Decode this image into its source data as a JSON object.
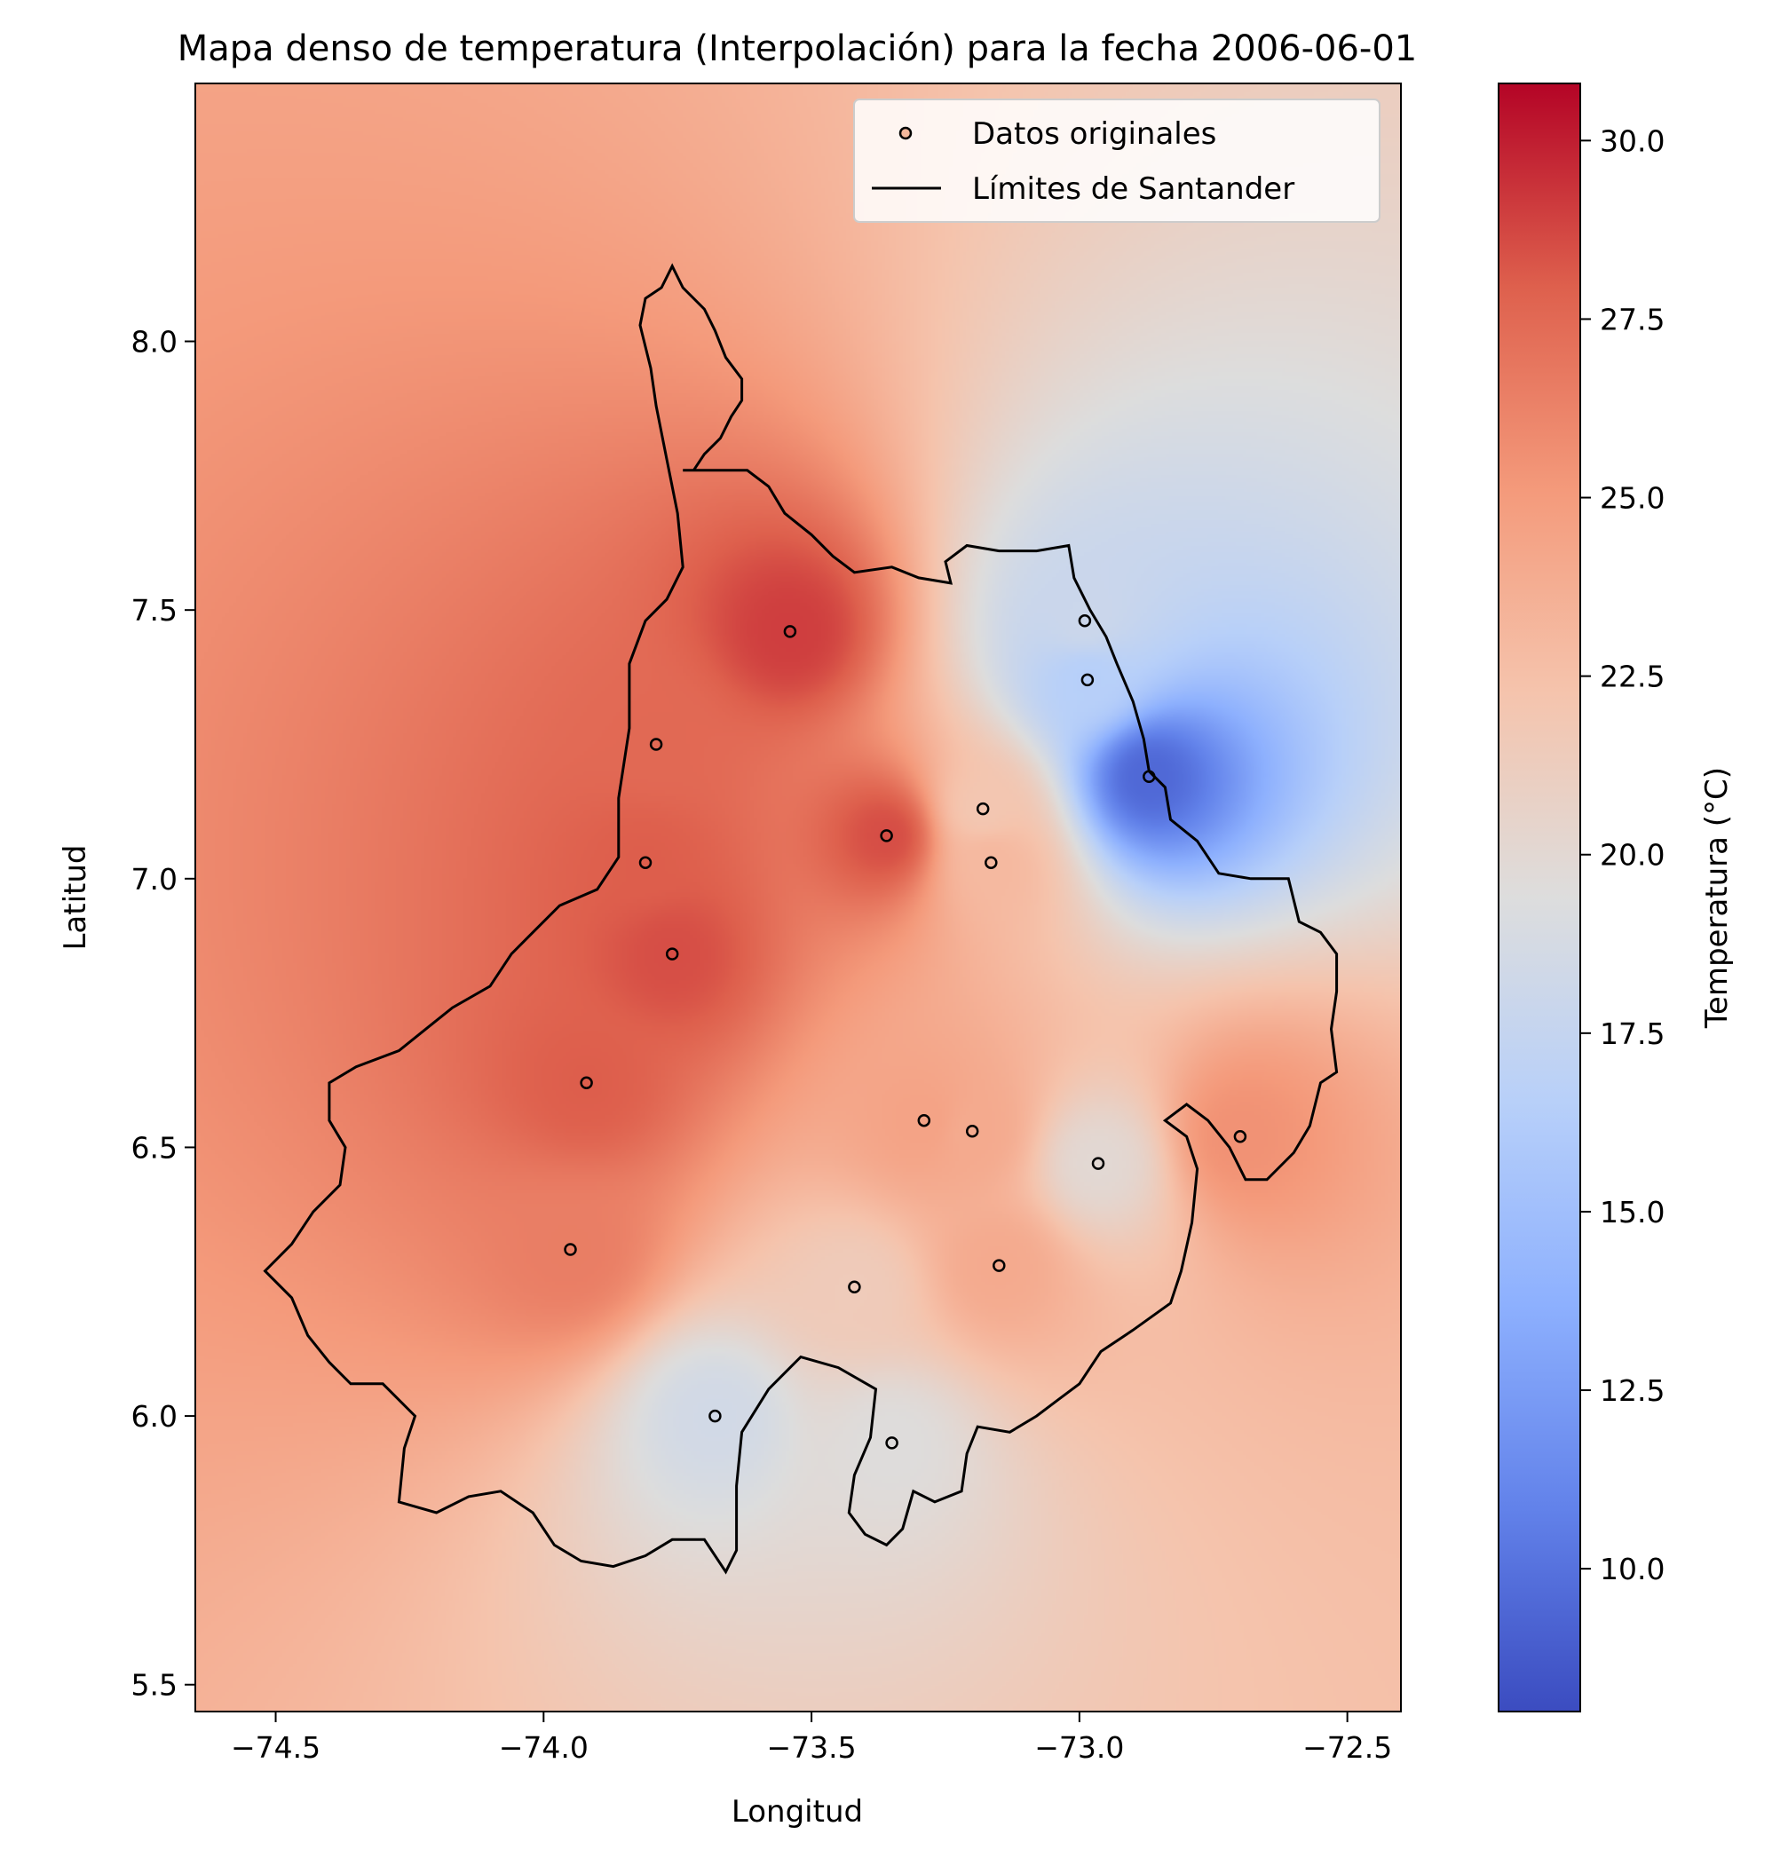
{
  "chart_data": {
    "type": "heatmap",
    "title": "Mapa denso de temperatura (Interpolación) para la fecha 2006-06-01",
    "xlabel": "Longitud",
    "ylabel": "Latitud",
    "xlim": [
      -74.65,
      -72.4
    ],
    "ylim": [
      5.45,
      8.48
    ],
    "x_ticks": [
      -74.5,
      -74.0,
      -73.5,
      -73.0,
      -72.5
    ],
    "x_tick_labels": [
      "−74.5",
      "−74.0",
      "−73.5",
      "−73.0",
      "−72.5"
    ],
    "y_ticks": [
      5.5,
      6.0,
      6.5,
      7.0,
      7.5,
      8.0
    ],
    "y_tick_labels": [
      "5.5",
      "6.0",
      "6.5",
      "7.0",
      "7.5",
      "8.0"
    ],
    "colormap": "coolwarm",
    "colorbar": {
      "label": "Temperatura (°C)",
      "range": [
        8.0,
        30.8
      ],
      "ticks": [
        10.0,
        12.5,
        15.0,
        17.5,
        20.0,
        22.5,
        25.0,
        27.5,
        30.0
      ],
      "tick_labels": [
        "10.0",
        "12.5",
        "15.0",
        "17.5",
        "20.0",
        "22.5",
        "25.0",
        "27.5",
        "30.0"
      ]
    },
    "legend": {
      "placement": "top-right",
      "entries": [
        "Datos originales",
        "Límites de Santander"
      ]
    },
    "grid": false,
    "stations": [
      {
        "lon": -73.54,
        "lat": 7.46,
        "temp": 29.0
      },
      {
        "lon": -72.99,
        "lat": 7.48,
        "temp": 18.0
      },
      {
        "lon": -72.985,
        "lat": 7.37,
        "temp": 16.5
      },
      {
        "lon": -72.87,
        "lat": 7.19,
        "temp": 9.5
      },
      {
        "lon": -73.79,
        "lat": 7.25,
        "temp": 27.5
      },
      {
        "lon": -73.36,
        "lat": 7.08,
        "temp": 28.5
      },
      {
        "lon": -73.18,
        "lat": 7.13,
        "temp": 22.0
      },
      {
        "lon": -73.165,
        "lat": 7.03,
        "temp": 23.0
      },
      {
        "lon": -73.81,
        "lat": 7.03,
        "temp": 28.0
      },
      {
        "lon": -73.76,
        "lat": 6.86,
        "temp": 28.5
      },
      {
        "lon": -73.92,
        "lat": 6.62,
        "temp": 28.0
      },
      {
        "lon": -73.29,
        "lat": 6.55,
        "temp": 24.5
      },
      {
        "lon": -73.2,
        "lat": 6.53,
        "temp": 24.0
      },
      {
        "lon": -72.965,
        "lat": 6.47,
        "temp": 20.0
      },
      {
        "lon": -72.7,
        "lat": 6.52,
        "temp": 25.5
      },
      {
        "lon": -73.95,
        "lat": 6.31,
        "temp": 26.5
      },
      {
        "lon": -73.15,
        "lat": 6.28,
        "temp": 24.0
      },
      {
        "lon": -73.42,
        "lat": 6.24,
        "temp": 21.5
      },
      {
        "lon": -73.68,
        "lat": 6.0,
        "temp": 18.5
      },
      {
        "lon": -73.35,
        "lat": 5.95,
        "temp": 19.5
      }
    ],
    "boundary": [
      [
        -73.78,
        8.1
      ],
      [
        -73.76,
        8.14
      ],
      [
        -73.74,
        8.1
      ],
      [
        -73.7,
        8.06
      ],
      [
        -73.68,
        8.02
      ],
      [
        -73.66,
        7.97
      ],
      [
        -73.63,
        7.93
      ],
      [
        -73.63,
        7.89
      ],
      [
        -73.65,
        7.86
      ],
      [
        -73.67,
        7.82
      ],
      [
        -73.7,
        7.79
      ],
      [
        -73.72,
        7.76
      ],
      [
        -73.74,
        7.76
      ],
      [
        -73.62,
        7.76
      ],
      [
        -73.58,
        7.73
      ],
      [
        -73.55,
        7.68
      ],
      [
        -73.5,
        7.64
      ],
      [
        -73.46,
        7.6
      ],
      [
        -73.42,
        7.57
      ],
      [
        -73.35,
        7.58
      ],
      [
        -73.3,
        7.56
      ],
      [
        -73.24,
        7.55
      ],
      [
        -73.25,
        7.59
      ],
      [
        -73.21,
        7.62
      ],
      [
        -73.15,
        7.61
      ],
      [
        -73.08,
        7.61
      ],
      [
        -73.02,
        7.62
      ],
      [
        -73.01,
        7.56
      ],
      [
        -72.98,
        7.5
      ],
      [
        -72.95,
        7.45
      ],
      [
        -72.93,
        7.4
      ],
      [
        -72.9,
        7.33
      ],
      [
        -72.88,
        7.26
      ],
      [
        -72.87,
        7.2
      ],
      [
        -72.84,
        7.17
      ],
      [
        -72.83,
        7.11
      ],
      [
        -72.78,
        7.07
      ],
      [
        -72.74,
        7.01
      ],
      [
        -72.68,
        7.0
      ],
      [
        -72.61,
        7.0
      ],
      [
        -72.59,
        6.92
      ],
      [
        -72.55,
        6.9
      ],
      [
        -72.52,
        6.86
      ],
      [
        -72.52,
        6.79
      ],
      [
        -72.53,
        6.72
      ],
      [
        -72.52,
        6.64
      ],
      [
        -72.55,
        6.62
      ],
      [
        -72.57,
        6.54
      ],
      [
        -72.6,
        6.49
      ],
      [
        -72.65,
        6.44
      ],
      [
        -72.69,
        6.44
      ],
      [
        -72.72,
        6.5
      ],
      [
        -72.76,
        6.55
      ],
      [
        -72.8,
        6.58
      ],
      [
        -72.84,
        6.55
      ],
      [
        -72.8,
        6.52
      ],
      [
        -72.78,
        6.46
      ],
      [
        -72.79,
        6.36
      ],
      [
        -72.81,
        6.27
      ],
      [
        -72.83,
        6.21
      ],
      [
        -72.9,
        6.16
      ],
      [
        -72.96,
        6.12
      ],
      [
        -73.0,
        6.06
      ],
      [
        -73.04,
        6.03
      ],
      [
        -73.08,
        6.0
      ],
      [
        -73.13,
        5.97
      ],
      [
        -73.19,
        5.98
      ],
      [
        -73.21,
        5.93
      ],
      [
        -73.22,
        5.86
      ],
      [
        -73.27,
        5.84
      ],
      [
        -73.31,
        5.86
      ],
      [
        -73.33,
        5.79
      ],
      [
        -73.36,
        5.76
      ],
      [
        -73.4,
        5.78
      ],
      [
        -73.43,
        5.82
      ],
      [
        -73.42,
        5.89
      ],
      [
        -73.39,
        5.96
      ],
      [
        -73.38,
        6.05
      ],
      [
        -73.45,
        6.09
      ],
      [
        -73.52,
        6.11
      ],
      [
        -73.58,
        6.05
      ],
      [
        -73.63,
        5.97
      ],
      [
        -73.64,
        5.87
      ],
      [
        -73.64,
        5.75
      ],
      [
        -73.66,
        5.71
      ],
      [
        -73.7,
        5.77
      ],
      [
        -73.76,
        5.77
      ],
      [
        -73.81,
        5.74
      ],
      [
        -73.87,
        5.72
      ],
      [
        -73.93,
        5.73
      ],
      [
        -73.98,
        5.76
      ],
      [
        -74.02,
        5.82
      ],
      [
        -74.08,
        5.86
      ],
      [
        -74.14,
        5.85
      ],
      [
        -74.2,
        5.82
      ],
      [
        -74.27,
        5.84
      ],
      [
        -74.26,
        5.94
      ],
      [
        -74.24,
        6.0
      ],
      [
        -74.3,
        6.06
      ],
      [
        -74.36,
        6.06
      ],
      [
        -74.4,
        6.1
      ],
      [
        -74.44,
        6.15
      ],
      [
        -74.47,
        6.22
      ],
      [
        -74.52,
        6.27
      ],
      [
        -74.47,
        6.32
      ],
      [
        -74.43,
        6.38
      ],
      [
        -74.38,
        6.43
      ],
      [
        -74.37,
        6.5
      ],
      [
        -74.4,
        6.55
      ],
      [
        -74.4,
        6.62
      ],
      [
        -74.35,
        6.65
      ],
      [
        -74.27,
        6.68
      ],
      [
        -74.22,
        6.72
      ],
      [
        -74.17,
        6.76
      ],
      [
        -74.1,
        6.8
      ],
      [
        -74.06,
        6.86
      ],
      [
        -74.02,
        6.9
      ],
      [
        -73.97,
        6.95
      ],
      [
        -73.9,
        6.98
      ],
      [
        -73.86,
        7.04
      ],
      [
        -73.86,
        7.15
      ],
      [
        -73.84,
        7.28
      ],
      [
        -73.84,
        7.4
      ],
      [
        -73.81,
        7.48
      ],
      [
        -73.77,
        7.52
      ],
      [
        -73.74,
        7.58
      ],
      [
        -73.75,
        7.68
      ],
      [
        -73.77,
        7.78
      ],
      [
        -73.79,
        7.88
      ],
      [
        -73.8,
        7.95
      ],
      [
        -73.82,
        8.03
      ],
      [
        -73.81,
        8.08
      ],
      [
        -73.78,
        8.1
      ]
    ]
  }
}
